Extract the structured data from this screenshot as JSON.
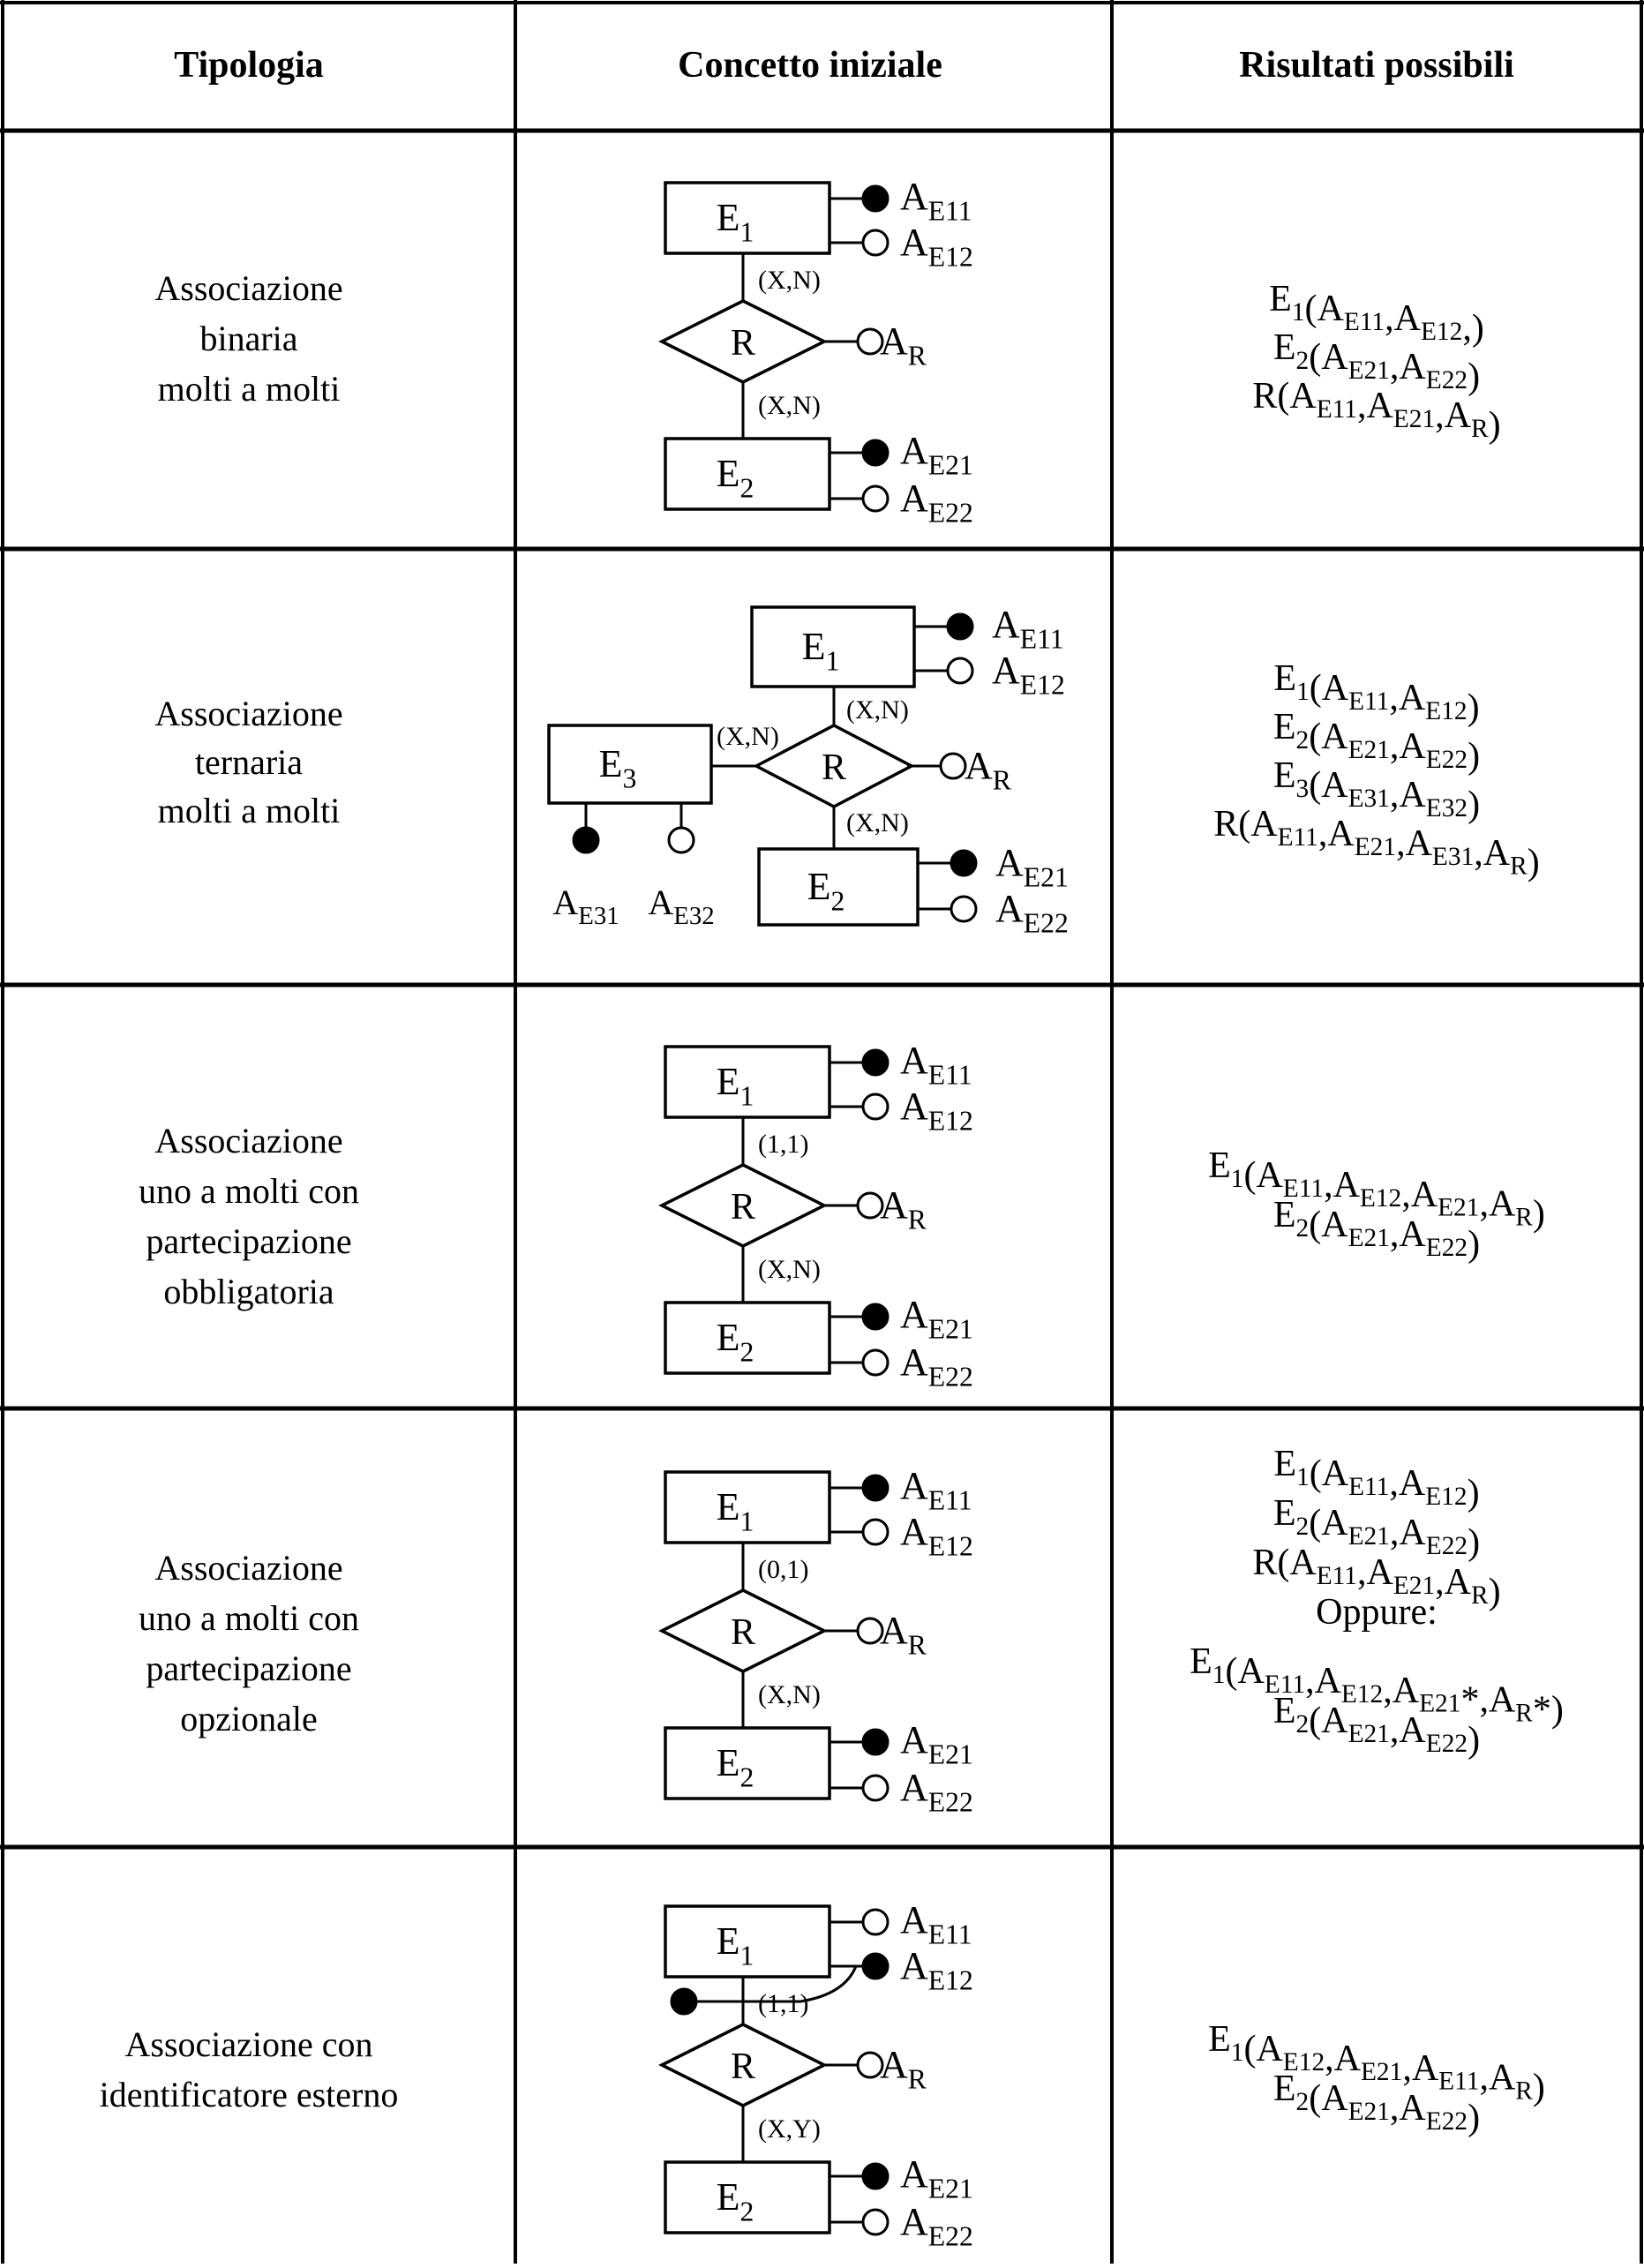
{
  "header": {
    "col1": "Tipologia",
    "col2": "Concetto iniziale",
    "col3": "Risultati possibili"
  },
  "rows": [
    {
      "tipologia": [
        "Associazione",
        "binaria",
        "molti a molti"
      ],
      "diagram": {
        "e1": "E1",
        "e2": "E2",
        "rel": "R",
        "card1": "(X,N)",
        "card2": "(X,N)",
        "attrs": {
          "ae11": "AE11",
          "ae12": "AE12",
          "ar": "AR",
          "ae21": "AE21",
          "ae22": "AE22"
        }
      },
      "risultati": [
        "E1(AE11,AE12,)",
        "E2(AE21,AE22)",
        "R(AE11,AE21,AR)"
      ]
    },
    {
      "tipologia": [
        "Associazione",
        "ternaria",
        "molti a molti"
      ],
      "diagram": {
        "e1": "E1",
        "e2": "E2",
        "e3": "E3",
        "rel": "R",
        "card1": "(X,N)",
        "card2": "(X,N)",
        "card3": "(X,N)",
        "attrs": {
          "ae11": "AE11",
          "ae12": "AE12",
          "ar": "AR",
          "ae21": "AE21",
          "ae22": "AE22",
          "ae31": "AE31",
          "ae32": "AE32"
        }
      },
      "risultati": [
        "E1(AE11,AE12)",
        "E2(AE21,AE22)",
        "E3(AE31,AE32)",
        "R(AE11,AE21,AE31,AR)"
      ]
    },
    {
      "tipologia": [
        "Associazione",
        "uno a molti con",
        "partecipazione",
        "obbligatoria"
      ],
      "diagram": {
        "e1": "E1",
        "e2": "E2",
        "rel": "R",
        "card1": "(1,1)",
        "card2": "(X,N)",
        "attrs": {
          "ae11": "AE11",
          "ae12": "AE12",
          "ar": "AR",
          "ae21": "AE21",
          "ae22": "AE22"
        }
      },
      "risultati": [
        "E1(AE11,AE12,AE21,AR)",
        "E2(AE21,AE22)"
      ]
    },
    {
      "tipologia": [
        "Associazione",
        "uno a molti con",
        "partecipazione",
        "opzionale"
      ],
      "diagram": {
        "e1": "E1",
        "e2": "E2",
        "rel": "R",
        "card1": "(0,1)",
        "card2": "(X,N)",
        "attrs": {
          "ae11": "AE11",
          "ae12": "AE12",
          "ar": "AR",
          "ae21": "AE21",
          "ae22": "AE22"
        }
      },
      "risultati": [
        "E1(AE11,AE12)",
        "E2(AE21,AE22)",
        "R(AE11,AE21,AR)",
        "Oppure:",
        "E1(AE11,AE12,AE21*,AR*)",
        "E2(AE21,AE22)"
      ]
    },
    {
      "tipologia": [
        "Associazione con",
        "identificatore esterno"
      ],
      "diagram": {
        "e1": "E1",
        "e2": "E2",
        "rel": "R",
        "card1": "(1,1)",
        "card2": "(X,Y)",
        "attrs": {
          "ae11": "AE11",
          "ae12": "AE12",
          "ar": "AR",
          "ae21": "AE21",
          "ae22": "AE22"
        }
      },
      "risultati": [
        "E1(AE12,AE21,AE11,AR)",
        "E2(AE21,AE22)"
      ]
    }
  ]
}
